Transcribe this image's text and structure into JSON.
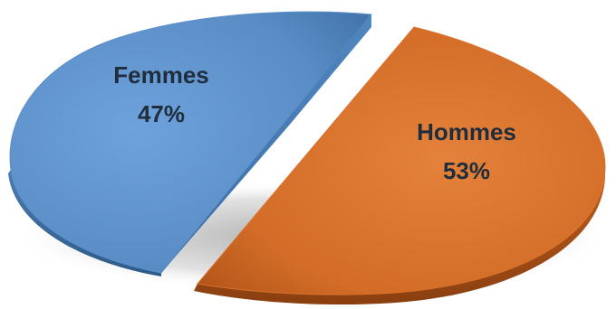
{
  "chart_data": {
    "type": "pie",
    "style": "3d-exploded",
    "title": "",
    "slices": [
      {
        "label": "Femmes",
        "value": 47,
        "value_label": "47%",
        "color": "#5b8fc9"
      },
      {
        "label": "Hommes",
        "value": 53,
        "value_label": "53%",
        "color": "#d9722d"
      }
    ],
    "legend": "none"
  }
}
